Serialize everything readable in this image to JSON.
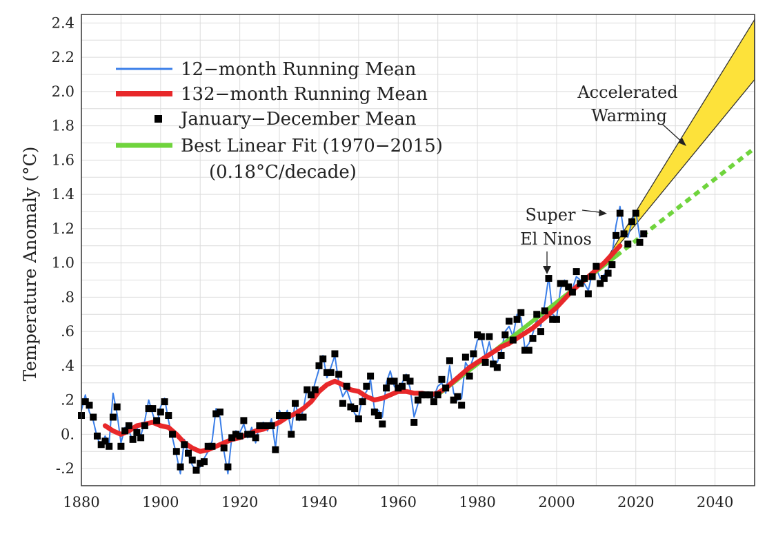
{
  "chart_data": {
    "type": "line",
    "ylabel": "Temperature Anomaly (°C)",
    "xlabel": "",
    "xlim": [
      1880,
      2050
    ],
    "ylim": [
      -0.3,
      2.45
    ],
    "grid": true,
    "x_ticks": [
      1880,
      1900,
      1920,
      1940,
      1960,
      1980,
      2000,
      2020,
      2040
    ],
    "x_tick_labels": [
      "1880",
      "1900",
      "1920",
      "1940",
      "1960",
      "1980",
      "2000",
      "2020",
      "2040"
    ],
    "y_ticks": [
      -0.2,
      0.0,
      0.2,
      0.4,
      0.6,
      0.8,
      1.0,
      1.2,
      1.4,
      1.6,
      1.8,
      2.0,
      2.2,
      2.4
    ],
    "y_tick_labels": [
      "-.2",
      "0.",
      ".2",
      ".4",
      ".6",
      ".8",
      "1.0",
      "1.2",
      "1.4",
      "1.6",
      "1.8",
      "2.0",
      "2.2",
      "2.4"
    ],
    "legend": {
      "position": "top-left",
      "entries": [
        {
          "label": "12−month Running Mean",
          "color": "#3a7ee8",
          "style": "thin-line"
        },
        {
          "label": "132−month Running Mean",
          "color": "#e8282a",
          "style": "thick-line"
        },
        {
          "label": "January−December Mean",
          "color": "#000000",
          "style": "square"
        },
        {
          "label": "Best Linear Fit (1970−2015)",
          "color": "#6fd43c",
          "style": "thick-line"
        }
      ],
      "note": "(0.18°C/decade)"
    },
    "annotations": [
      {
        "text": "Accelerated",
        "target": "accelerated-warming-band"
      },
      {
        "text": "Warming",
        "target": "accelerated-warming-band"
      },
      {
        "text": "Super",
        "target": "el-nino-2016"
      },
      {
        "text": "El Ninos",
        "target": "el-nino-1998"
      }
    ],
    "series": [
      {
        "name": "January−December Mean",
        "x": [
          1880,
          1881,
          1882,
          1883,
          1884,
          1885,
          1886,
          1887,
          1888,
          1889,
          1890,
          1891,
          1892,
          1893,
          1894,
          1895,
          1896,
          1897,
          1898,
          1899,
          1900,
          1901,
          1902,
          1903,
          1904,
          1905,
          1906,
          1907,
          1908,
          1909,
          1910,
          1911,
          1912,
          1913,
          1914,
          1915,
          1916,
          1917,
          1918,
          1919,
          1920,
          1921,
          1922,
          1923,
          1924,
          1925,
          1926,
          1927,
          1928,
          1929,
          1930,
          1931,
          1932,
          1933,
          1934,
          1935,
          1936,
          1937,
          1938,
          1939,
          1940,
          1941,
          1942,
          1943,
          1944,
          1945,
          1946,
          1947,
          1948,
          1949,
          1950,
          1951,
          1952,
          1953,
          1954,
          1955,
          1956,
          1957,
          1958,
          1959,
          1960,
          1961,
          1962,
          1963,
          1964,
          1965,
          1966,
          1967,
          1968,
          1969,
          1970,
          1971,
          1972,
          1973,
          1974,
          1975,
          1976,
          1977,
          1978,
          1979,
          1980,
          1981,
          1982,
          1983,
          1984,
          1985,
          1986,
          1987,
          1988,
          1989,
          1990,
          1991,
          1992,
          1993,
          1994,
          1995,
          1996,
          1997,
          1998,
          1999,
          2000,
          2001,
          2002,
          2003,
          2004,
          2005,
          2006,
          2007,
          2008,
          2009,
          2010,
          2011,
          2012,
          2013,
          2014,
          2015,
          2016,
          2017,
          2018,
          2019,
          2020,
          2021,
          2022
        ],
        "values": [
          0.11,
          0.19,
          0.17,
          0.1,
          -0.01,
          -0.06,
          -0.04,
          -0.07,
          0.1,
          0.16,
          -0.07,
          0.02,
          0.05,
          -0.03,
          0.01,
          -0.02,
          0.05,
          0.15,
          0.15,
          0.08,
          0.13,
          0.19,
          0.11,
          0.0,
          -0.1,
          -0.19,
          -0.06,
          -0.11,
          -0.15,
          -0.21,
          -0.17,
          -0.16,
          -0.07,
          -0.07,
          0.12,
          0.13,
          -0.08,
          -0.19,
          -0.02,
          0.0,
          -0.01,
          0.08,
          0.0,
          0.0,
          -0.02,
          0.05,
          0.05,
          0.05,
          0.05,
          -0.09,
          0.11,
          0.11,
          0.11,
          0.0,
          0.18,
          0.1,
          0.1,
          0.26,
          0.23,
          0.26,
          0.4,
          0.44,
          0.36,
          0.36,
          0.47,
          0.35,
          0.18,
          0.28,
          0.16,
          0.15,
          0.09,
          0.19,
          0.28,
          0.34,
          0.13,
          0.11,
          0.06,
          0.27,
          0.31,
          0.31,
          0.27,
          0.28,
          0.33,
          0.31,
          0.07,
          0.2,
          0.23,
          0.23,
          0.23,
          0.19,
          0.23,
          0.32,
          0.27,
          0.43,
          0.2,
          0.22,
          0.17,
          0.45,
          0.34,
          0.47,
          0.58,
          0.57,
          0.42,
          0.57,
          0.41,
          0.39,
          0.46,
          0.58,
          0.66,
          0.55,
          0.67,
          0.71,
          0.49,
          0.49,
          0.56,
          0.7,
          0.6,
          0.72,
          0.91,
          0.67,
          0.67,
          0.88,
          0.88,
          0.86,
          0.83,
          0.95,
          0.88,
          0.91,
          0.82,
          0.92,
          0.98,
          0.88,
          0.91,
          0.94,
          0.99,
          1.16,
          1.29,
          1.17,
          1.11,
          1.24,
          1.29,
          1.12,
          1.17
        ]
      },
      {
        "name": "12−month Running Mean",
        "x": [
          1880,
          1881,
          1882,
          1883,
          1884,
          1885,
          1886,
          1887,
          1888,
          1889,
          1890,
          1891,
          1892,
          1893,
          1894,
          1895,
          1896,
          1897,
          1898,
          1899,
          1900,
          1901,
          1902,
          1903,
          1904,
          1905,
          1906,
          1907,
          1908,
          1909,
          1910,
          1911,
          1912,
          1913,
          1914,
          1915,
          1916,
          1917,
          1918,
          1919,
          1920,
          1921,
          1922,
          1923,
          1924,
          1925,
          1926,
          1927,
          1928,
          1929,
          1930,
          1931,
          1932,
          1933,
          1934,
          1935,
          1936,
          1937,
          1938,
          1939,
          1940,
          1941,
          1942,
          1943,
          1944,
          1945,
          1946,
          1947,
          1948,
          1949,
          1950,
          1951,
          1952,
          1953,
          1954,
          1955,
          1956,
          1957,
          1958,
          1959,
          1960,
          1961,
          1962,
          1963,
          1964,
          1965,
          1966,
          1967,
          1968,
          1969,
          1970,
          1971,
          1972,
          1973,
          1974,
          1975,
          1976,
          1977,
          1978,
          1979,
          1980,
          1981,
          1982,
          1983,
          1984,
          1985,
          1986,
          1987,
          1988,
          1989,
          1990,
          1991,
          1992,
          1993,
          1994,
          1995,
          1996,
          1997,
          1998,
          1999,
          2000,
          2001,
          2002,
          2003,
          2004,
          2005,
          2006,
          2007,
          2008,
          2009,
          2010,
          2011,
          2012,
          2013,
          2014,
          2015,
          2016,
          2017,
          2018,
          2019,
          2020,
          2021,
          2022
        ],
        "values": [
          0.14,
          0.23,
          0.13,
          0.08,
          -0.02,
          -0.07,
          -0.01,
          -0.05,
          0.24,
          0.12,
          -0.05,
          0.04,
          0.02,
          -0.04,
          0.04,
          -0.01,
          0.08,
          0.2,
          0.12,
          0.05,
          0.16,
          0.21,
          0.08,
          -0.02,
          -0.12,
          -0.23,
          -0.03,
          -0.12,
          -0.18,
          -0.21,
          -0.19,
          -0.14,
          -0.1,
          -0.04,
          0.15,
          0.1,
          -0.1,
          -0.23,
          -0.01,
          0.02,
          0.01,
          0.06,
          -0.02,
          0.04,
          -0.05,
          0.06,
          0.07,
          0.02,
          0.09,
          -0.08,
          0.14,
          0.08,
          0.14,
          0.02,
          0.19,
          0.08,
          0.14,
          0.27,
          0.21,
          0.3,
          0.38,
          0.46,
          0.33,
          0.39,
          0.46,
          0.3,
          0.22,
          0.26,
          0.19,
          0.12,
          0.1,
          0.22,
          0.25,
          0.32,
          0.15,
          0.14,
          0.1,
          0.3,
          0.37,
          0.28,
          0.25,
          0.3,
          0.35,
          0.27,
          0.1,
          0.18,
          0.25,
          0.22,
          0.24,
          0.22,
          0.28,
          0.3,
          0.24,
          0.4,
          0.24,
          0.2,
          0.21,
          0.42,
          0.38,
          0.45,
          0.55,
          0.56,
          0.45,
          0.54,
          0.43,
          0.42,
          0.48,
          0.6,
          0.63,
          0.57,
          0.7,
          0.68,
          0.5,
          0.53,
          0.59,
          0.67,
          0.63,
          0.76,
          0.92,
          0.7,
          0.68,
          0.85,
          0.9,
          0.84,
          0.85,
          0.92,
          0.9,
          0.88,
          0.84,
          0.94,
          0.97,
          0.91,
          0.93,
          0.96,
          1.05,
          1.22,
          1.33,
          1.18,
          1.15,
          1.24,
          1.3,
          1.15,
          1.18
        ]
      },
      {
        "name": "132−month Running Mean",
        "x": [
          1886,
          1888,
          1890,
          1892,
          1894,
          1896,
          1898,
          1900,
          1902,
          1904,
          1906,
          1908,
          1910,
          1912,
          1914,
          1916,
          1918,
          1920,
          1922,
          1924,
          1926,
          1928,
          1930,
          1932,
          1934,
          1936,
          1938,
          1940,
          1942,
          1944,
          1946,
          1948,
          1950,
          1952,
          1954,
          1956,
          1958,
          1960,
          1962,
          1964,
          1966,
          1968,
          1970,
          1972,
          1974,
          1976,
          1978,
          1980,
          1982,
          1984,
          1986,
          1988,
          1990,
          1992,
          1994,
          1996,
          1998,
          2000,
          2002,
          2004,
          2006,
          2008,
          2010,
          2012,
          2014,
          2016
        ],
        "values": [
          0.05,
          0.02,
          0.0,
          0.02,
          0.05,
          0.06,
          0.07,
          0.05,
          0.04,
          0.0,
          -0.05,
          -0.08,
          -0.1,
          -0.09,
          -0.07,
          -0.05,
          -0.03,
          -0.02,
          0.0,
          0.02,
          0.03,
          0.05,
          0.07,
          0.1,
          0.12,
          0.15,
          0.19,
          0.25,
          0.29,
          0.31,
          0.29,
          0.26,
          0.25,
          0.22,
          0.2,
          0.21,
          0.23,
          0.25,
          0.25,
          0.24,
          0.24,
          0.23,
          0.24,
          0.27,
          0.31,
          0.35,
          0.39,
          0.42,
          0.45,
          0.48,
          0.51,
          0.53,
          0.56,
          0.59,
          0.62,
          0.66,
          0.7,
          0.74,
          0.79,
          0.84,
          0.88,
          0.92,
          0.96,
          1.0,
          1.05,
          1.1
        ]
      },
      {
        "name": "Best Linear Fit (1970−2015)",
        "x": [
          1970,
          2015,
          2050
        ],
        "values": [
          0.23,
          1.04,
          1.67
        ],
        "projection_from": 2015
      },
      {
        "name": "Accelerated Warming",
        "x": [
          2012,
          2050
        ],
        "upper": [
          1.0,
          2.42
        ],
        "lower": [
          1.0,
          2.07
        ]
      }
    ]
  }
}
